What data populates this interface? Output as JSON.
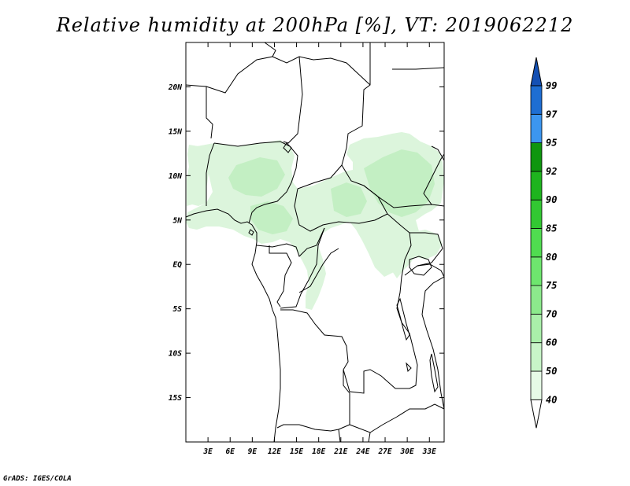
{
  "header": {
    "title": "Relative humidity at 200hPa [%], VT: 2019062212"
  },
  "footer": {
    "credit": "GrADS: IGES/COLA"
  },
  "map": {
    "lon_range": [
      0,
      35
    ],
    "lat_range": [
      -20,
      25
    ],
    "lon_ticks": [
      {
        "value": 3,
        "label": "3E"
      },
      {
        "value": 6,
        "label": "6E"
      },
      {
        "value": 9,
        "label": "9E"
      },
      {
        "value": 12,
        "label": "12E"
      },
      {
        "value": 15,
        "label": "15E"
      },
      {
        "value": 18,
        "label": "18E"
      },
      {
        "value": 21,
        "label": "21E"
      },
      {
        "value": 24,
        "label": "24E"
      },
      {
        "value": 27,
        "label": "27E"
      },
      {
        "value": 30,
        "label": "30E"
      },
      {
        "value": 33,
        "label": "33E"
      }
    ],
    "lat_ticks": [
      {
        "value": 20,
        "label": "20N"
      },
      {
        "value": 15,
        "label": "15N"
      },
      {
        "value": 10,
        "label": "10N"
      },
      {
        "value": 5,
        "label": "5N"
      },
      {
        "value": 0,
        "label": "EQ"
      },
      {
        "value": -5,
        "label": "5S"
      },
      {
        "value": -10,
        "label": "10S"
      },
      {
        "value": -15,
        "label": "15S"
      }
    ]
  },
  "colorbar": {
    "levels": [
      "40",
      "50",
      "60",
      "70",
      "75",
      "80",
      "85",
      "90",
      "92",
      "95",
      "97",
      "99"
    ],
    "colors": [
      "#ffffff",
      "#e6fae6",
      "#c8f5c8",
      "#aaf0aa",
      "#8cea8c",
      "#6ee66e",
      "#50dc50",
      "#32c832",
      "#1eb41e",
      "#0f960f",
      "#3c96f0",
      "#1e6ed2",
      "#1450b4"
    ]
  },
  "field": {
    "fill_light": "#dcf5dc",
    "fill_medium": "#c3efc3"
  }
}
